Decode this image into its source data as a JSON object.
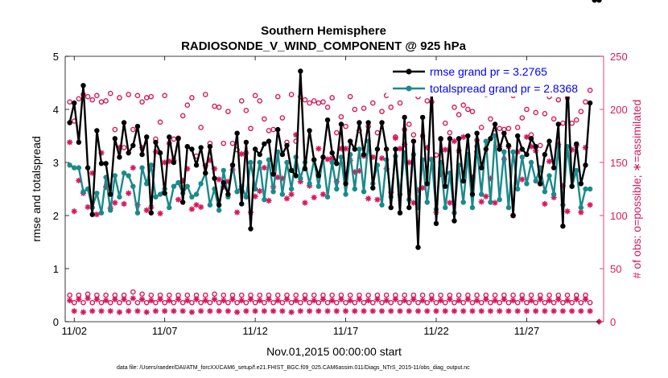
{
  "colors": {
    "rmse": "#000000",
    "spread": "#1a8a8a",
    "obs": "#d6195e",
    "legend_text": "#0000ff"
  },
  "chart_data": {
    "type": "line",
    "title": "Southern Hemisphere",
    "subtitle": "RADIOSONDE_V_WIND_COMPONENT @ 925 hPa",
    "xlabel": "Nov.01,2015 00:00:00 start",
    "ylabel_left": "rmse and totalspread",
    "ylabel_right": "# of obs: o=possible; ∗=assimilated",
    "footnote": "data file: /Users/raeder/DAI/ATM_forcXX/CAM6_setup/f.e21.FHIST_BGC.f09_025.CAM6assim.011/Diags_NTrS_2015-11/obs_diag_output.nc",
    "x_tick_labels": [
      "11/02",
      "11/07",
      "11/12",
      "11/17",
      "11/22",
      "11/27"
    ],
    "x_tick_days": [
      2,
      7,
      12,
      17,
      22,
      27
    ],
    "xlim_days": [
      1.5,
      31.25
    ],
    "ylim_left": [
      0,
      5
    ],
    "left_ticks": [
      "0",
      "1",
      "2",
      "3",
      "4",
      "5"
    ],
    "ylim_right": [
      0,
      250
    ],
    "right_ticks": [
      "0",
      "50",
      "100",
      "150",
      "200",
      "250"
    ],
    "x_days": [
      1.75,
      2.0,
      2.25,
      2.5,
      2.75,
      3.0,
      3.25,
      3.5,
      3.75,
      4.0,
      4.25,
      4.5,
      4.75,
      5.0,
      5.25,
      5.5,
      5.75,
      6.0,
      6.25,
      6.5,
      6.75,
      7.0,
      7.25,
      7.5,
      7.75,
      8.0,
      8.25,
      8.5,
      8.75,
      9.0,
      9.25,
      9.5,
      9.75,
      10.0,
      10.25,
      10.5,
      10.75,
      11.0,
      11.25,
      11.5,
      11.75,
      12.0,
      12.25,
      12.5,
      12.75,
      13.0,
      13.25,
      13.5,
      13.75,
      14.0,
      14.25,
      14.5,
      14.75,
      15.0,
      15.25,
      15.5,
      15.75,
      16.0,
      16.25,
      16.5,
      16.75,
      17.0,
      17.25,
      17.5,
      17.75,
      18.0,
      18.25,
      18.5,
      18.75,
      19.0,
      19.25,
      19.5,
      19.75,
      20.0,
      20.25,
      20.5,
      20.75,
      21.0,
      21.25,
      21.5,
      21.75,
      22.0,
      22.25,
      22.5,
      22.75,
      23.0,
      23.25,
      23.5,
      23.75,
      24.0,
      24.25,
      24.5,
      24.75,
      25.0,
      25.25,
      25.5,
      25.75,
      26.0,
      26.25,
      26.5,
      26.75,
      27.0,
      27.25,
      27.5,
      27.75,
      28.0,
      28.25,
      28.5,
      28.75,
      29.0,
      29.25,
      29.5,
      29.75,
      30.0,
      30.25,
      30.5,
      30.75,
      31.0
    ],
    "series": [
      {
        "name": "rmse",
        "legend": "rmse grand pr = 3.2765",
        "values": [
          3.75,
          4.12,
          3.38,
          4.45,
          2.9,
          2.02,
          3.6,
          2.98,
          2.98,
          2.4,
          3.45,
          3.1,
          3.75,
          3.18,
          3.32,
          3.68,
          3.15,
          3.48,
          2.05,
          3.38,
          3.18,
          2.42,
          3.48,
          3.0,
          3.45,
          2.25,
          3.3,
          3.25,
          2.95,
          3.28,
          2.8,
          3.3,
          2.7,
          2.2,
          2.62,
          2.4,
          2.95,
          3.55,
          2.22,
          3.38,
          1.75,
          3.25,
          3.15,
          3.35,
          3.4,
          2.78,
          3.62,
          3.15,
          3.32,
          2.85,
          2.75,
          4.72,
          2.88,
          3.6,
          3.05,
          2.75,
          3.1,
          3.8,
          3.18,
          2.98,
          3.72,
          2.6,
          3.4,
          3.25,
          3.75,
          3.15,
          3.75,
          2.52,
          3.25,
          3.75,
          3.25,
          2.15,
          3.25,
          2.05,
          3.85,
          2.15,
          3.4,
          1.4,
          3.85,
          2.6,
          4.42,
          1.85,
          3.45,
          2.55,
          3.45,
          1.9,
          3.45,
          2.65,
          3.5,
          2.4,
          3.55,
          2.9,
          3.25,
          3.45,
          3.72,
          3.25,
          3.55,
          3.32,
          2.0,
          3.5,
          3.25,
          3.15,
          3.45,
          3.3,
          2.6,
          3.15,
          3.4,
          2.9,
          3.72,
          1.8,
          4.55,
          2.55,
          3.35,
          2.6,
          2.95,
          4.12
        ]
      },
      {
        "name": "totalspread",
        "legend": "totalspread grand pr = 2.8368",
        "values": [
          2.95,
          2.9,
          2.9,
          2.45,
          2.5,
          2.15,
          2.42,
          2.05,
          2.72,
          2.1,
          2.75,
          2.35,
          2.8,
          2.75,
          2.55,
          2.05,
          2.9,
          2.6,
          2.95,
          2.35,
          2.4,
          2.5,
          2.15,
          2.55,
          2.62,
          2.42,
          2.55,
          2.35,
          2.4,
          2.6,
          2.8,
          2.2,
          2.5,
          2.1,
          2.85,
          2.35,
          2.95,
          2.45,
          2.55,
          2.35,
          3.0,
          2.5,
          3.0,
          2.3,
          3.05,
          2.45,
          3.2,
          2.4,
          3.0,
          2.5,
          3.1,
          2.7,
          3.0,
          2.6,
          3.05,
          2.55,
          3.1,
          2.35,
          3.0,
          2.5,
          3.1,
          2.4,
          3.15,
          2.5,
          3.25,
          2.45,
          3.4,
          2.6,
          2.95,
          2.2,
          3.05,
          2.35,
          3.12,
          2.4,
          3.18,
          2.3,
          3.15,
          2.15,
          3.05,
          2.25,
          3.05,
          2.12,
          3.0,
          2.15,
          2.8,
          2.05,
          2.95,
          2.25,
          3.15,
          2.15,
          3.3,
          2.4,
          3.4,
          2.25,
          3.5,
          2.3,
          3.2,
          2.15,
          3.2,
          2.5,
          3.1,
          2.6,
          3.0,
          2.65,
          2.9,
          2.45,
          2.75,
          2.4,
          3.3,
          2.2,
          3.3,
          2.55,
          2.85,
          2.15,
          2.5,
          2.5
        ]
      }
    ],
    "obs_possible_upper": [
      207,
      189,
      210,
      214,
      212,
      209,
      213,
      207,
      208,
      215,
      181,
      211,
      164,
      214,
      181,
      213,
      207,
      211,
      212,
      172,
      188,
      213,
      168,
      172,
      173,
      194,
      204,
      211,
      156,
      183,
      214,
      168,
      203,
      202,
      168,
      198,
      168,
      162,
      208,
      199,
      182,
      213,
      208,
      191,
      180,
      181,
      212,
      192,
      169,
      214,
      170,
      212,
      209,
      206,
      208,
      206,
      207,
      202,
      211,
      178,
      193,
      184,
      212,
      200,
      180,
      201,
      184,
      206,
      178,
      198,
      213,
      202,
      174,
      206,
      181,
      186,
      176,
      212,
      175,
      208,
      207,
      157,
      172,
      187,
      178,
      202,
      195,
      204,
      200,
      198,
      171,
      183,
      214,
      191,
      178,
      182,
      181,
      182,
      213,
      183,
      192,
      200,
      176,
      197,
      166,
      196,
      212,
      191,
      209,
      187,
      211,
      187,
      190,
      198,
      207,
      218
    ],
    "obs_assim_upper": [
      169,
      104,
      133,
      121,
      108,
      140,
      101,
      159,
      127,
      107,
      112,
      164,
      111,
      121,
      145,
      110,
      164,
      105,
      108,
      160,
      102,
      150,
      151,
      152,
      115,
      133,
      144,
      106,
      110,
      108,
      147,
      152,
      144,
      134,
      127,
      132,
      143,
      103,
      158,
      159,
      103,
      118,
      123,
      145,
      114,
      127,
      136,
      135,
      116,
      120,
      176,
      132,
      112,
      128,
      117,
      163,
      120,
      153,
      154,
      132,
      163,
      163,
      152,
      141,
      142,
      156,
      116,
      155,
      115,
      154,
      144,
      122,
      173,
      163,
      167,
      150,
      112,
      124,
      126,
      164,
      153,
      103,
      139,
      162,
      112,
      170,
      161,
      174,
      150,
      136,
      160,
      113,
      118,
      135,
      112,
      165,
      153,
      165,
      100,
      160,
      134,
      174,
      165,
      161,
      130,
      111,
      151,
      117,
      167,
      128,
      104,
      162,
      166,
      103,
      164,
      110
    ],
    "obs_possible_lower": [
      25,
      18,
      25,
      18,
      26,
      18,
      25,
      18,
      25,
      18,
      25,
      18,
      25,
      18,
      28,
      18,
      26,
      18,
      25,
      18,
      25,
      18,
      25,
      18,
      25,
      18,
      25,
      18,
      25,
      18,
      25,
      18,
      26,
      18,
      25,
      18,
      25,
      18,
      25,
      18,
      25,
      18,
      25,
      18,
      25,
      18,
      25,
      18,
      25,
      18,
      25,
      18,
      25,
      18,
      25,
      18,
      25,
      18,
      25,
      18,
      25,
      18,
      25,
      18,
      25,
      18,
      25,
      18,
      25,
      18,
      25,
      18,
      25,
      18,
      25,
      18,
      25,
      18,
      25,
      18,
      25,
      18,
      25,
      18,
      25,
      18,
      25,
      18,
      25,
      18,
      25,
      18,
      25,
      18,
      25,
      18,
      25,
      18,
      25,
      18,
      25,
      18,
      25,
      18,
      25,
      18,
      25,
      18,
      25,
      18,
      25,
      18,
      25,
      18,
      25,
      18
    ],
    "obs_assim_lower": [
      20,
      10,
      21,
      9,
      22,
      10,
      21,
      10,
      20,
      10,
      21,
      9,
      21,
      10,
      22,
      10,
      21,
      9,
      20,
      10,
      21,
      10,
      20,
      10,
      21,
      10,
      20,
      9,
      21,
      10,
      20,
      10,
      21,
      10,
      20,
      10,
      21,
      9,
      20,
      10,
      21,
      10,
      20,
      10,
      21,
      10,
      20,
      10,
      21,
      9,
      20,
      10,
      21,
      10,
      20,
      10,
      21,
      10,
      20,
      10,
      21,
      10,
      20,
      10,
      21,
      10,
      20,
      10,
      21,
      10,
      20,
      10,
      21,
      10,
      20,
      10,
      21,
      10,
      20,
      10,
      21,
      10,
      20,
      10,
      21,
      10,
      20,
      10,
      21,
      10,
      20,
      10,
      21,
      10,
      20,
      10,
      21,
      10,
      20,
      10,
      21,
      10,
      20,
      10,
      21,
      10,
      20,
      10,
      21,
      10,
      20,
      10,
      21,
      10,
      21,
      10
    ],
    "extra_points": [
      {
        "day": 31.0,
        "value": 0,
        "marker": "assimilated"
      }
    ]
  }
}
